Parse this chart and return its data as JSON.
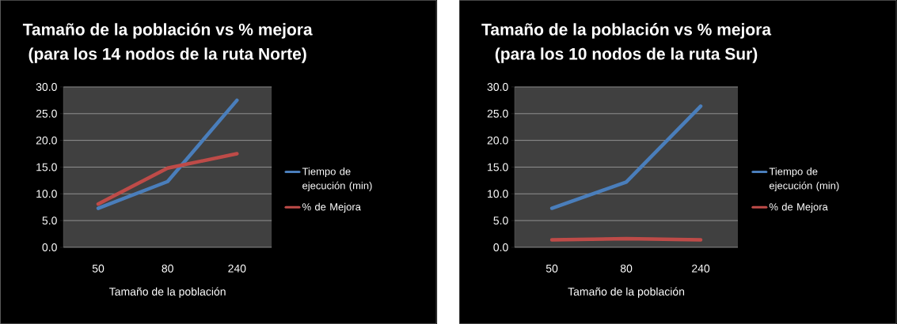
{
  "chart_data": [
    {
      "type": "line",
      "title": "Tamaño de la población  vs % mejora",
      "subtitle": "(para los 14 nodos de la ruta Norte)",
      "xlabel": "Tamaño de la población",
      "categories": [
        "50",
        "80",
        "240"
      ],
      "series": [
        {
          "name": "Tiempo de ejecución (min)",
          "color": "#4a7ebb",
          "values": [
            7.3,
            12.3,
            27.5
          ]
        },
        {
          "name": "% de Mejora",
          "color": "#be4b48",
          "values": [
            8.1,
            14.8,
            17.5
          ]
        }
      ],
      "ylim": [
        0,
        30
      ],
      "yticks": [
        {
          "value": 0,
          "label": "0.0"
        },
        {
          "value": 5,
          "label": "5.0"
        },
        {
          "value": 10,
          "label": "10.0"
        },
        {
          "value": 15,
          "label": "15.0"
        },
        {
          "value": 20,
          "label": "20.0"
        },
        {
          "value": 25,
          "label": "25.0"
        },
        {
          "value": 30,
          "label": "30.0"
        }
      ],
      "grid": "y",
      "legend": "right",
      "marker": "none",
      "line_style": "solid"
    },
    {
      "type": "line",
      "title": "Tamaño de la población  vs % mejora",
      "subtitle": "(para los 10 nodos de la ruta Sur)",
      "xlabel": "Tamaño de la población",
      "categories": [
        "50",
        "80",
        "240"
      ],
      "series": [
        {
          "name": "Tiempo de ejecución (min)",
          "color": "#4a7ebb",
          "values": [
            7.3,
            12.2,
            26.4
          ]
        },
        {
          "name": "% de Mejora",
          "color": "#be4b48",
          "values": [
            1.4,
            1.6,
            1.4
          ]
        }
      ],
      "ylim": [
        0,
        30
      ],
      "yticks": [
        {
          "value": 0,
          "label": "0.0"
        },
        {
          "value": 5,
          "label": "5.0"
        },
        {
          "value": 10,
          "label": "10.0"
        },
        {
          "value": 15,
          "label": "15.0"
        },
        {
          "value": 20,
          "label": "20.0"
        },
        {
          "value": 25,
          "label": "25.0"
        },
        {
          "value": 30,
          "label": "30.0"
        }
      ],
      "grid": "y",
      "legend": "right",
      "marker": "none",
      "line_style": "solid"
    }
  ]
}
